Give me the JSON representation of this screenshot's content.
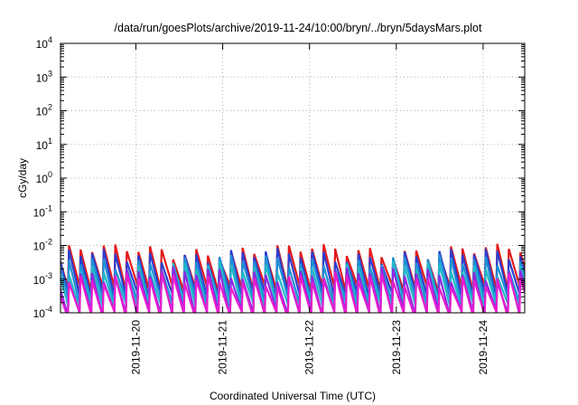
{
  "chart_data": {
    "type": "line",
    "title": "/data/run/goesPlots/archive/2019-11-24/10:00/bryn/../bryn/5daysMars.plot",
    "xlabel": "Coordinated Universal Time (UTC)",
    "ylabel": "cGy/day",
    "x_range": [
      "2019-11-19T03:10",
      "2019-11-24T11:30"
    ],
    "x_ticks": [
      "2019-11-20",
      "2019-11-21",
      "2019-11-22",
      "2019-11-23",
      "2019-11-24"
    ],
    "y_scale": "log",
    "y_range": [
      0.0001,
      10000
    ],
    "y_ticks": [
      {
        "base": "10",
        "exp": "-4"
      },
      {
        "base": "10",
        "exp": "-3"
      },
      {
        "base": "10",
        "exp": "-2"
      },
      {
        "base": "10",
        "exp": "-1"
      },
      {
        "base": "10",
        "exp": "0"
      },
      {
        "base": "10",
        "exp": "1"
      },
      {
        "base": "10",
        "exp": "2"
      },
      {
        "base": "10",
        "exp": "3"
      },
      {
        "base": "10",
        "exp": "4"
      }
    ],
    "grid": true,
    "legend": "none",
    "sawtooth_period_hours": 3.2,
    "series": [
      {
        "color": "#e41a1c",
        "peak": 0.007,
        "trough": 0.0006
      },
      {
        "color": "#2c3ecf",
        "peak": 0.0052,
        "trough": 0.00038
      },
      {
        "color": "#1e90d6",
        "peak": 0.0034,
        "trough": 0.00026
      },
      {
        "color": "#22b8c8",
        "peak": 0.0022,
        "trough": 0.00018
      },
      {
        "color": "#8a2be2",
        "peak": 0.0015,
        "trough": 0.00011
      },
      {
        "color": "#e81ccf",
        "peak": 0.001,
        "trough": 0.0001
      }
    ]
  }
}
